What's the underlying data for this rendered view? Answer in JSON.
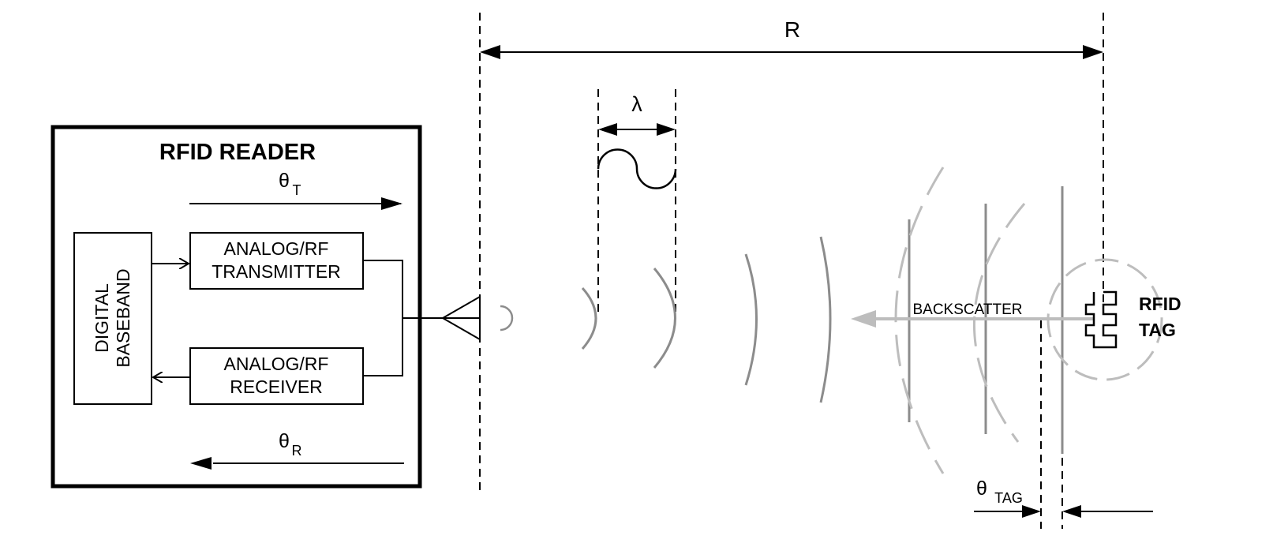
{
  "reader": {
    "title": "RFID READER",
    "baseband_line1": "DIGITAL",
    "baseband_line2": "BASEBAND",
    "tx_line1": "ANALOG/RF",
    "tx_line2": "TRANSMITTER",
    "rx_line1": "ANALOG/RF",
    "rx_line2": "RECEIVER",
    "theta_t_symbol": "θ",
    "theta_t_sub": "T",
    "theta_r_symbol": "θ",
    "theta_r_sub": "R"
  },
  "range": {
    "label": "R",
    "lambda_label": "λ"
  },
  "tag": {
    "line1": "RFID",
    "line2": "TAG",
    "backscatter_label": "BACKSCATTER",
    "theta_tag_symbol": "θ",
    "theta_tag_sub": "TAG"
  },
  "colors": {
    "ink": "#000000",
    "gray": "#8c8c8c",
    "light_gray": "#bdbdbd"
  }
}
